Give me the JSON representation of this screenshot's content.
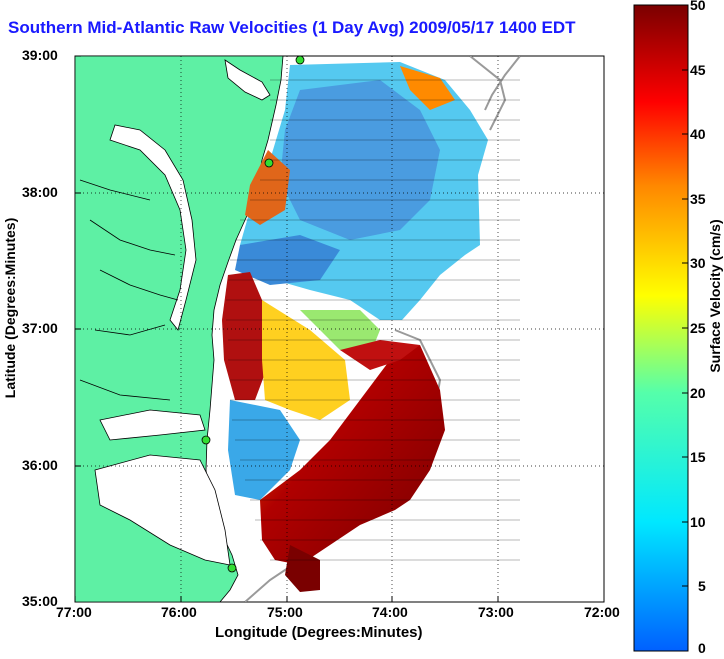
{
  "title": "Southern Mid-Atlantic Raw Velocities (1 Day Avg) 2009/05/17 1400 EDT",
  "xlabel": "Longitude (Degrees:Minutes)",
  "ylabel": "Latitude (Degrees:Minutes)",
  "colorbar_label": "Surface Velocity (cm/s)",
  "x_ticks": [
    "77:00",
    "76:00",
    "75:00",
    "74:00",
    "73:00",
    "72:00"
  ],
  "y_ticks": [
    "39:00",
    "38:00",
    "37:00",
    "36:00",
    "35:00"
  ],
  "colorbar_ticks": [
    "50",
    "45",
    "40",
    "35",
    "30",
    "25",
    "20",
    "15",
    "10",
    "5",
    "0"
  ],
  "colors": {
    "land": "#5ef0a4",
    "coast": "#000000",
    "title": "#1a1aff",
    "station": "#33dd33"
  },
  "map": {
    "lon_range": [
      -77,
      -72
    ],
    "lat_range": [
      35,
      39
    ],
    "units": "cm/s",
    "color_range": [
      0,
      50
    ]
  }
}
